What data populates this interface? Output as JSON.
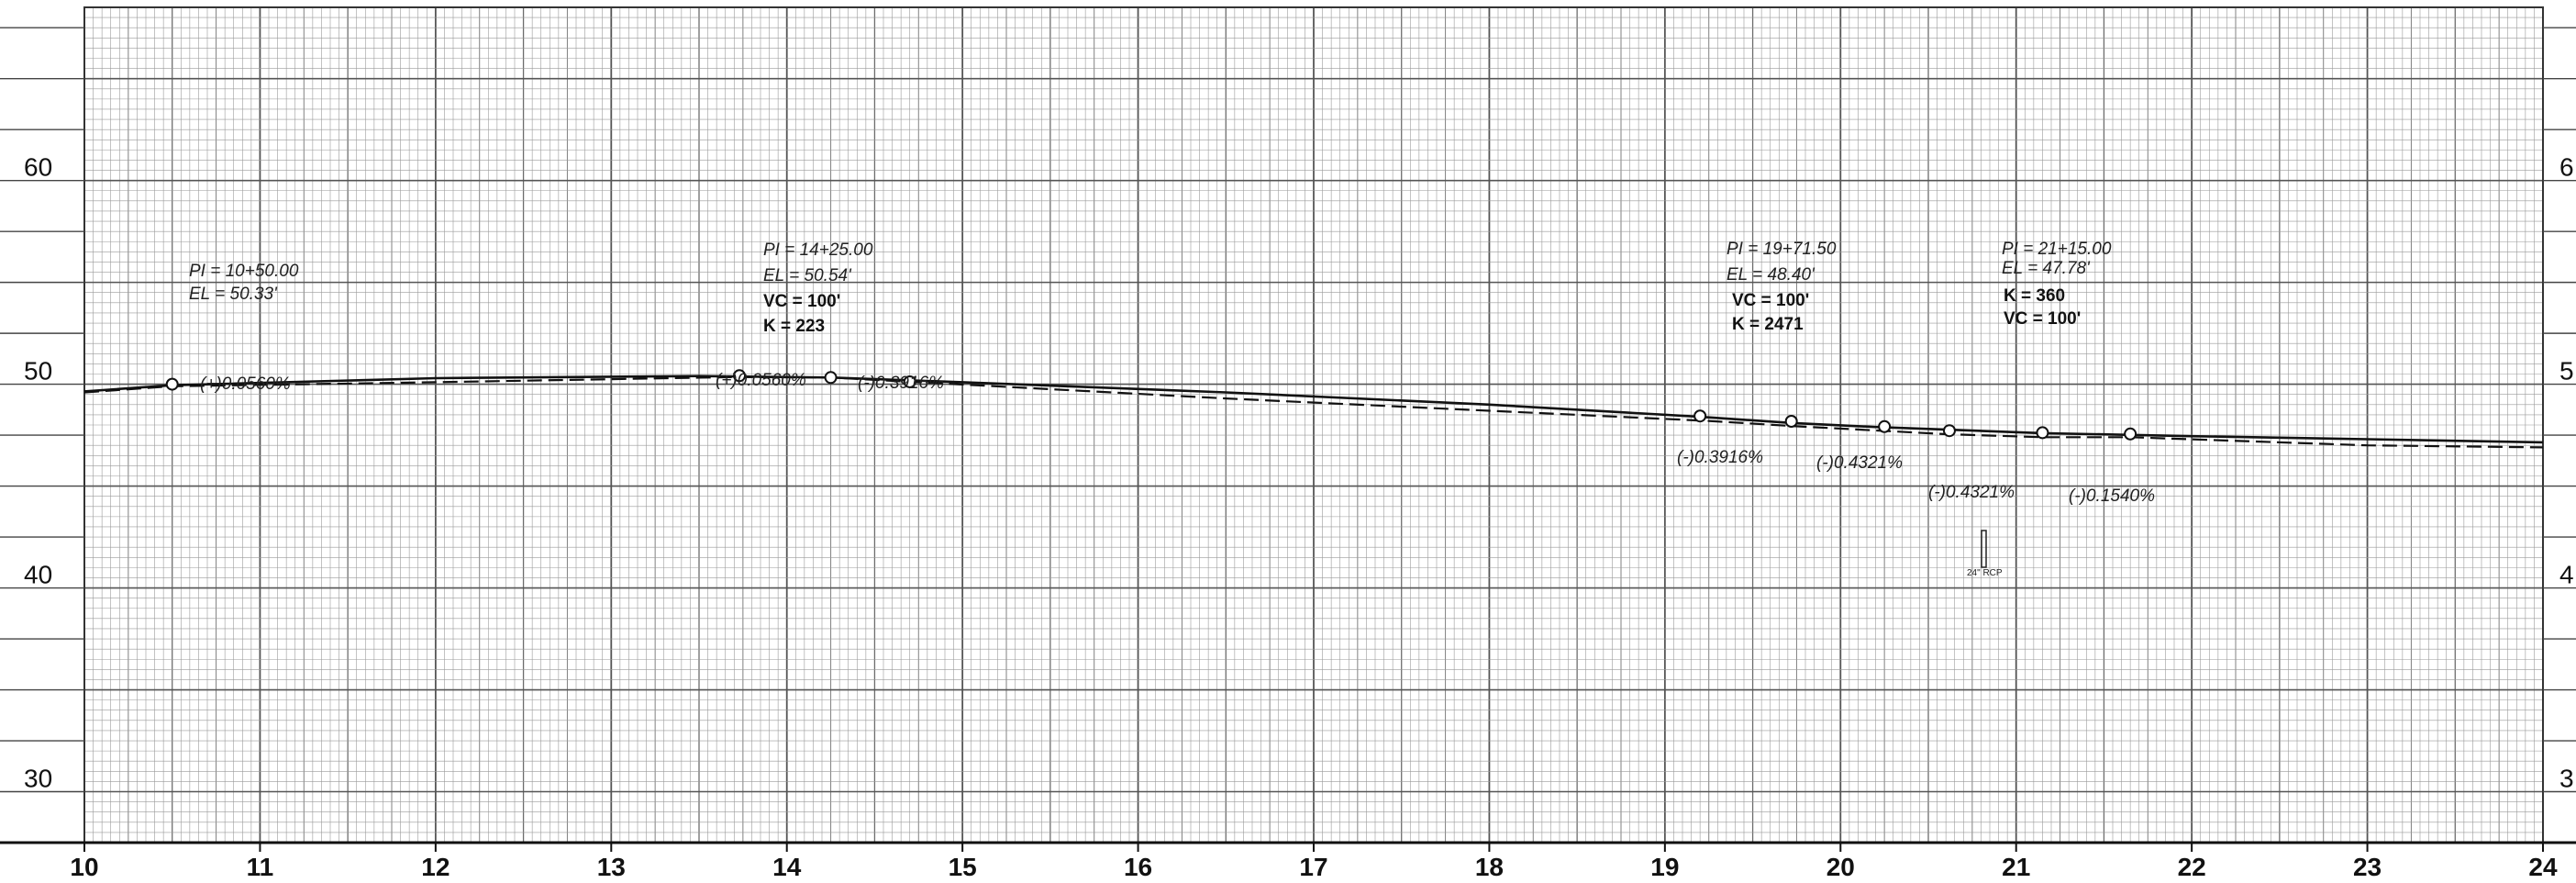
{
  "x_axis": {
    "ticks": [
      "10",
      "11",
      "12",
      "13",
      "14",
      "15",
      "16",
      "17",
      "18",
      "19",
      "20",
      "21",
      "22",
      "23",
      "24"
    ],
    "range": [
      10,
      24
    ]
  },
  "y_axis": {
    "left_labels": [
      "60",
      "50",
      "40",
      "30"
    ],
    "right_labels": [
      "6",
      "5",
      "4",
      "3"
    ],
    "right_label_values": [
      60,
      50,
      40,
      30
    ],
    "range": [
      27.5,
      68.5
    ]
  },
  "pvi_callouts": [
    {
      "pi": "PI = 10+50.00",
      "el": "EL = 50.33'"
    },
    {
      "pi": "PI = 14+25.00",
      "el": "EL = 50.54'",
      "vc": "VC  =  100'",
      "k": "K  =  223"
    },
    {
      "pi": "PI = 19+71.50",
      "el": "EL = 48.40'",
      "vc": "VC  =  100'",
      "k": "K  =  2471"
    },
    {
      "pi": "PI = 21+15.00",
      "el": "EL = 47.78'",
      "k": "K  =  360",
      "vc": "VC  =  100'"
    }
  ],
  "grade_labels": [
    "(+)0.0560%",
    "(+)0.0560%",
    "(-)0.3916%",
    "(-)0.3916%",
    "(-)0.4321%",
    "(-)0.4321%",
    "(-)0.1540%"
  ],
  "annotation": "24\" RCP",
  "chart_data": {
    "type": "line",
    "xlabel": "",
    "ylabel": "",
    "xlim": [
      10,
      24
    ],
    "ylim": [
      27.5,
      68.5
    ],
    "grid": true,
    "series": [
      {
        "values": [
          [
            10.0,
            49.65
          ],
          [
            10.5,
            49.95
          ],
          [
            12.0,
            50.3
          ],
          [
            13.5,
            50.4
          ],
          [
            14.25,
            50.33
          ],
          [
            15.0,
            50.1
          ],
          [
            16.5,
            49.6
          ],
          [
            18.0,
            49.0
          ],
          [
            19.2,
            48.4
          ],
          [
            19.72,
            48.1
          ],
          [
            20.2,
            47.9
          ],
          [
            21.15,
            47.6
          ],
          [
            22.0,
            47.45
          ],
          [
            23.0,
            47.3
          ],
          [
            24.0,
            47.15
          ]
        ]
      },
      {
        "style": "dashed",
        "values": [
          [
            10.0,
            49.6
          ],
          [
            10.5,
            49.9
          ],
          [
            12.0,
            50.1
          ],
          [
            13.7,
            50.35
          ],
          [
            14.25,
            50.33
          ],
          [
            14.75,
            50.1
          ],
          [
            16.5,
            49.3
          ],
          [
            18.0,
            48.7
          ],
          [
            19.25,
            48.2
          ],
          [
            19.72,
            47.95
          ],
          [
            20.6,
            47.55
          ],
          [
            21.15,
            47.4
          ],
          [
            21.65,
            47.4
          ],
          [
            23.0,
            47.0
          ],
          [
            24.0,
            46.9
          ]
        ]
      }
    ],
    "markers": [
      [
        10.5,
        50.0
      ],
      [
        13.73,
        50.42
      ],
      [
        14.25,
        50.33
      ],
      [
        14.7,
        50.12
      ],
      [
        19.2,
        48.44
      ],
      [
        19.72,
        48.18
      ],
      [
        20.25,
        47.92
      ],
      [
        20.62,
        47.72
      ],
      [
        21.15,
        47.62
      ],
      [
        21.65,
        47.56
      ]
    ]
  }
}
